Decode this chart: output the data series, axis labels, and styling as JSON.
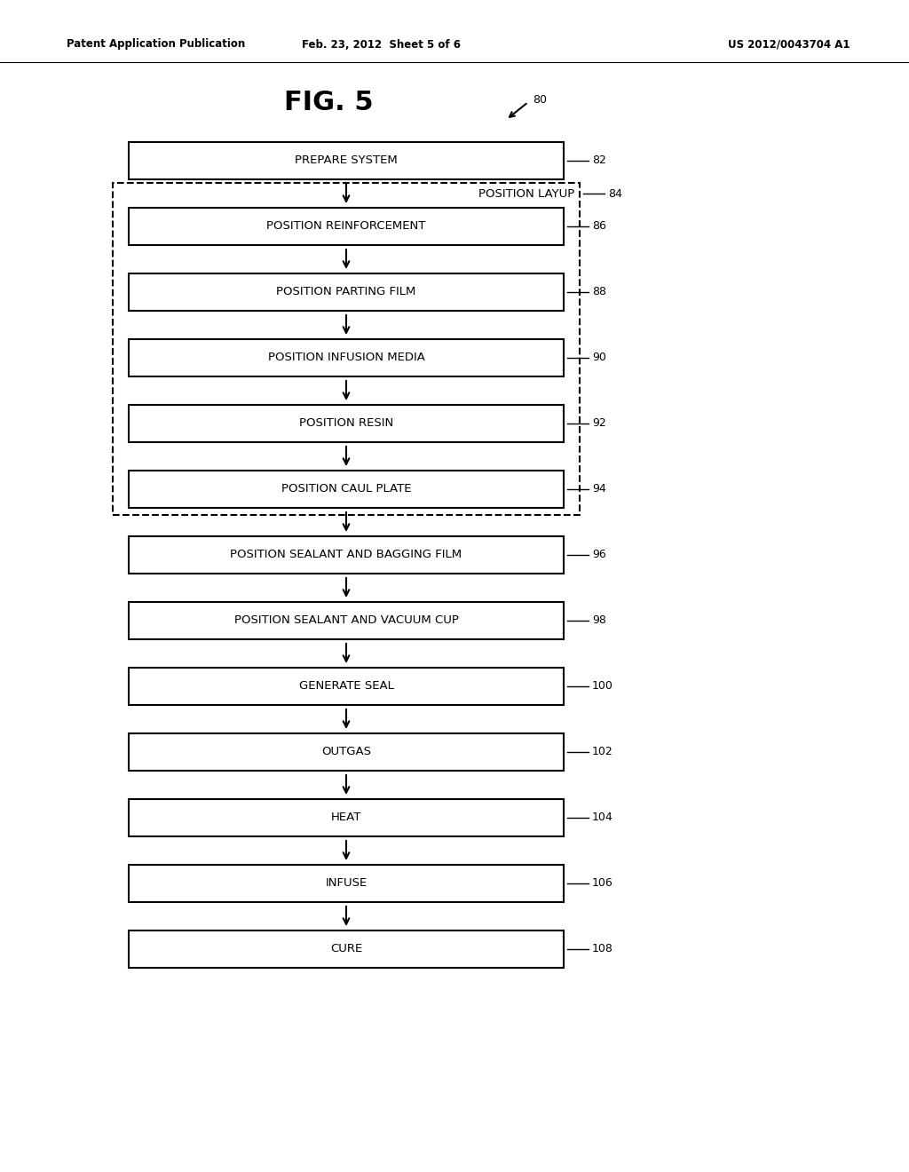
{
  "header_left": "Patent Application Publication",
  "header_center": "Feb. 23, 2012  Sheet 5 of 6",
  "header_right": "US 2012/0043704 A1",
  "fig_label": "FIG. 5",
  "fig_ref": "80",
  "bg_color": "#ffffff",
  "boxes": [
    {
      "label": "PREPARE SYSTEM",
      "ref": "82",
      "in_dashed": false
    },
    {
      "label": "POSITION REINFORCEMENT",
      "ref": "86",
      "in_dashed": true
    },
    {
      "label": "POSITION PARTING FILM",
      "ref": "88",
      "in_dashed": true
    },
    {
      "label": "POSITION INFUSION MEDIA",
      "ref": "90",
      "in_dashed": true
    },
    {
      "label": "POSITION RESIN",
      "ref": "92",
      "in_dashed": true
    },
    {
      "label": "POSITION CAUL PLATE",
      "ref": "94",
      "in_dashed": true
    },
    {
      "label": "POSITION SEALANT AND BAGGING FILM",
      "ref": "96",
      "in_dashed": false
    },
    {
      "label": "POSITION SEALANT AND VACUUM CUP",
      "ref": "98",
      "in_dashed": false
    },
    {
      "label": "GENERATE SEAL",
      "ref": "100",
      "in_dashed": false
    },
    {
      "label": "OUTGAS",
      "ref": "102",
      "in_dashed": false
    },
    {
      "label": "HEAT",
      "ref": "104",
      "in_dashed": false
    },
    {
      "label": "INFUSE",
      "ref": "106",
      "in_dashed": false
    },
    {
      "label": "CURE",
      "ref": "108",
      "in_dashed": false
    }
  ],
  "text_color": "#000000",
  "line_color": "#000000",
  "font_size_box": 9.5,
  "font_size_header": 8.5,
  "font_size_fig": 22,
  "font_size_ref": 9
}
